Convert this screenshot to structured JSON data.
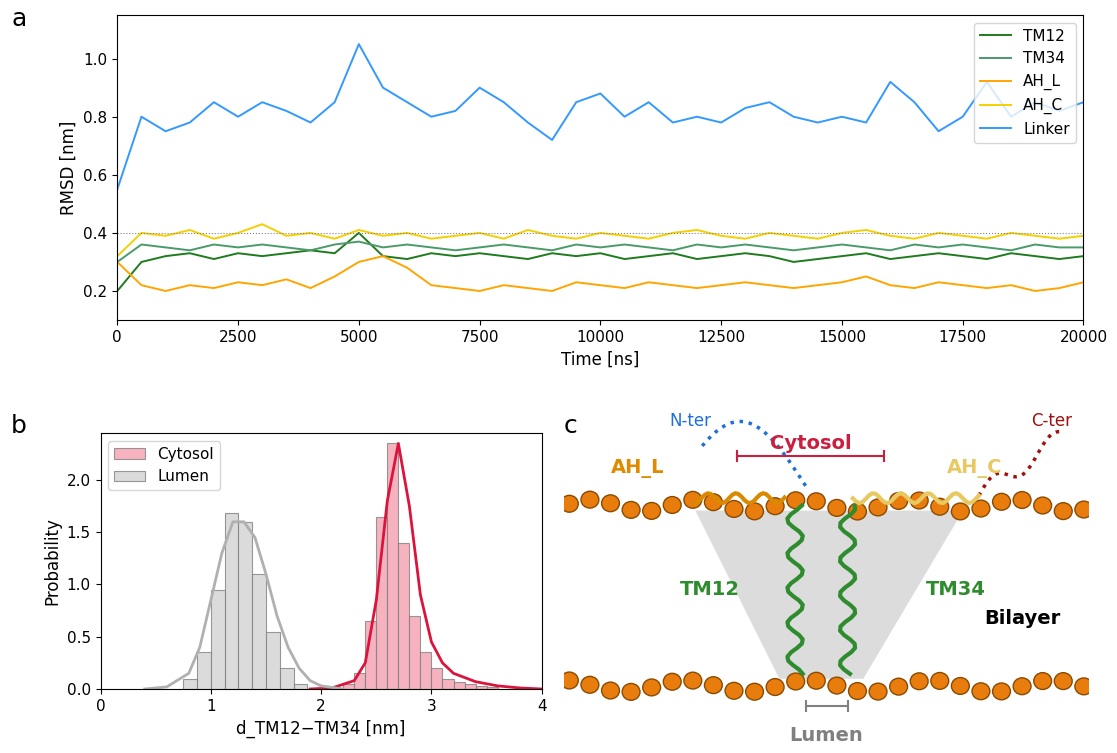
{
  "chart_data": [
    {
      "panel": "a",
      "type": "line",
      "x_label": "Time [ns]",
      "y_label": "RMSD [nm]",
      "x": [
        0,
        500,
        1000,
        1500,
        2000,
        2500,
        3000,
        3500,
        4000,
        4500,
        5000,
        5500,
        6000,
        6500,
        7000,
        7500,
        8000,
        8500,
        9000,
        9500,
        10000,
        10500,
        11000,
        11500,
        12000,
        12500,
        13000,
        13500,
        14000,
        14500,
        15000,
        15500,
        16000,
        16500,
        17000,
        17500,
        18000,
        18500,
        19000,
        19500,
        20000
      ],
      "xlim": [
        0,
        20000
      ],
      "xticks": [
        0,
        2500,
        5000,
        7500,
        10000,
        12500,
        15000,
        17500,
        20000
      ],
      "ylim": [
        0.1,
        1.15
      ],
      "yticks": [
        0.2,
        0.4,
        0.6,
        0.8,
        1.0
      ],
      "reference_line": 0.4,
      "legend": "upper right",
      "series": [
        {
          "name": "TM12",
          "color": "#1e7b1e",
          "values": [
            0.2,
            0.3,
            0.32,
            0.33,
            0.31,
            0.33,
            0.32,
            0.33,
            0.34,
            0.33,
            0.4,
            0.32,
            0.31,
            0.33,
            0.32,
            0.33,
            0.32,
            0.31,
            0.33,
            0.32,
            0.33,
            0.31,
            0.32,
            0.33,
            0.31,
            0.32,
            0.33,
            0.32,
            0.3,
            0.31,
            0.32,
            0.33,
            0.31,
            0.32,
            0.33,
            0.32,
            0.31,
            0.33,
            0.32,
            0.31,
            0.32
          ]
        },
        {
          "name": "TM34",
          "color": "#4a9a6a",
          "values": [
            0.3,
            0.36,
            0.35,
            0.34,
            0.36,
            0.35,
            0.36,
            0.35,
            0.34,
            0.36,
            0.37,
            0.35,
            0.36,
            0.35,
            0.34,
            0.35,
            0.36,
            0.35,
            0.34,
            0.36,
            0.35,
            0.36,
            0.35,
            0.34,
            0.36,
            0.35,
            0.36,
            0.35,
            0.34,
            0.35,
            0.36,
            0.35,
            0.34,
            0.36,
            0.35,
            0.36,
            0.35,
            0.34,
            0.36,
            0.35,
            0.35
          ]
        },
        {
          "name": "AH_L",
          "color": "#ffa500",
          "values": [
            0.3,
            0.22,
            0.2,
            0.22,
            0.21,
            0.23,
            0.22,
            0.24,
            0.21,
            0.25,
            0.3,
            0.32,
            0.28,
            0.22,
            0.21,
            0.2,
            0.22,
            0.21,
            0.2,
            0.23,
            0.22,
            0.21,
            0.23,
            0.22,
            0.21,
            0.22,
            0.23,
            0.22,
            0.21,
            0.22,
            0.23,
            0.25,
            0.22,
            0.21,
            0.23,
            0.22,
            0.21,
            0.22,
            0.2,
            0.21,
            0.23
          ]
        },
        {
          "name": "AH_C",
          "color": "#f5d000",
          "values": [
            0.32,
            0.4,
            0.39,
            0.41,
            0.38,
            0.4,
            0.43,
            0.39,
            0.4,
            0.38,
            0.41,
            0.39,
            0.4,
            0.38,
            0.39,
            0.4,
            0.38,
            0.41,
            0.39,
            0.38,
            0.4,
            0.39,
            0.38,
            0.4,
            0.41,
            0.39,
            0.38,
            0.4,
            0.39,
            0.38,
            0.4,
            0.41,
            0.39,
            0.38,
            0.4,
            0.39,
            0.38,
            0.4,
            0.39,
            0.38,
            0.39
          ]
        },
        {
          "name": "Linker",
          "color": "#3399ff",
          "values": [
            0.55,
            0.8,
            0.75,
            0.78,
            0.85,
            0.8,
            0.85,
            0.82,
            0.78,
            0.85,
            1.05,
            0.9,
            0.85,
            0.8,
            0.82,
            0.9,
            0.85,
            0.78,
            0.72,
            0.85,
            0.88,
            0.8,
            0.85,
            0.78,
            0.8,
            0.78,
            0.83,
            0.85,
            0.8,
            0.78,
            0.8,
            0.78,
            0.92,
            0.85,
            0.75,
            0.8,
            0.92,
            0.8,
            0.85,
            0.82,
            0.85
          ]
        }
      ]
    },
    {
      "panel": "b",
      "type": "histogram",
      "x_label": "d_TM12−TM34 [nm]",
      "y_label": "Probability",
      "xlim": [
        0,
        4
      ],
      "xticks": [
        0,
        1,
        2,
        3,
        4
      ],
      "ylim": [
        0,
        2.45
      ],
      "yticks": [
        0.0,
        0.5,
        1.0,
        1.5,
        2.0
      ],
      "legend": "upper left",
      "series": [
        {
          "name": "Cytosol",
          "color": "#f4a0b0",
          "line_color": "#dc143c",
          "bins": [
            2.2,
            2.3,
            2.4,
            2.5,
            2.6,
            2.7,
            2.8,
            2.9,
            3.0,
            3.1,
            3.2,
            3.3,
            3.4,
            3.5,
            3.6
          ],
          "counts": [
            0.05,
            0.15,
            0.65,
            1.65,
            2.35,
            1.4,
            0.7,
            0.35,
            0.2,
            0.1,
            0.07,
            0.05,
            0.03,
            0.02
          ],
          "curve": {
            "x": [
              1.9,
              2.1,
              2.3,
              2.4,
              2.5,
              2.6,
              2.7,
              2.8,
              2.9,
              3.0,
              3.1,
              3.2,
              3.4,
              3.6,
              3.8,
              4.0
            ],
            "y": [
              0.0,
              0.01,
              0.08,
              0.25,
              0.85,
              1.8,
              2.35,
              1.75,
              0.9,
              0.45,
              0.25,
              0.15,
              0.07,
              0.03,
              0.01,
              0.0
            ]
          }
        },
        {
          "name": "Lumen",
          "color": "#d3d3d3",
          "line_color": "#b0b0b0",
          "bins": [
            0.75,
            0.875,
            1.0,
            1.125,
            1.25,
            1.375,
            1.5,
            1.625,
            1.75,
            1.875
          ],
          "counts": [
            0.1,
            0.35,
            0.95,
            1.68,
            1.6,
            1.1,
            0.55,
            0.2,
            0.05
          ],
          "curve": {
            "x": [
              0.4,
              0.6,
              0.8,
              0.9,
              1.0,
              1.1,
              1.2,
              1.3,
              1.4,
              1.5,
              1.6,
              1.7,
              1.8,
              1.9,
              2.0,
              2.2
            ],
            "y": [
              0.0,
              0.02,
              0.15,
              0.4,
              0.85,
              1.3,
              1.6,
              1.6,
              1.45,
              1.1,
              0.7,
              0.4,
              0.2,
              0.08,
              0.03,
              0.0
            ]
          }
        }
      ]
    }
  ],
  "diagram": {
    "panel": "c",
    "labels": {
      "n_ter": "N-ter",
      "cytosol": "Cytosol",
      "c_ter": "C-ter",
      "ah_l": "AH_L",
      "ah_c": "AH_C",
      "tm12": "TM12",
      "tm34": "TM34",
      "bilayer": "Bilayer",
      "lumen": "Lumen"
    }
  }
}
